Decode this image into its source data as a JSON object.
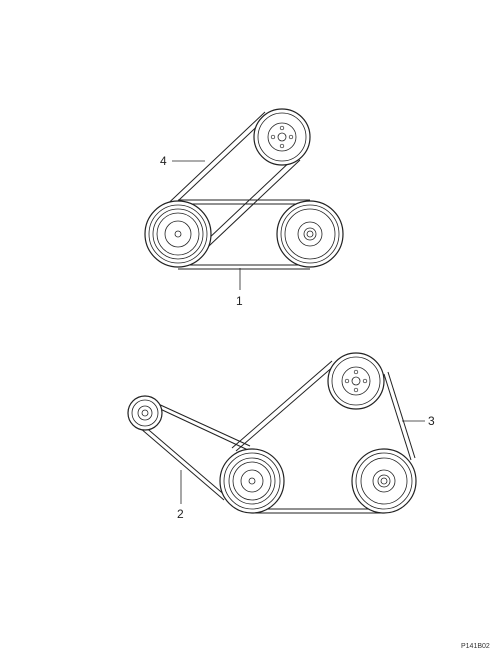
{
  "diagram": {
    "callouts": {
      "label_1": "1",
      "label_2": "2",
      "label_3": "3",
      "label_4": "4"
    },
    "figure_ref": "P141B02",
    "colors": {
      "line": "#222222",
      "background": "#ffffff"
    }
  }
}
